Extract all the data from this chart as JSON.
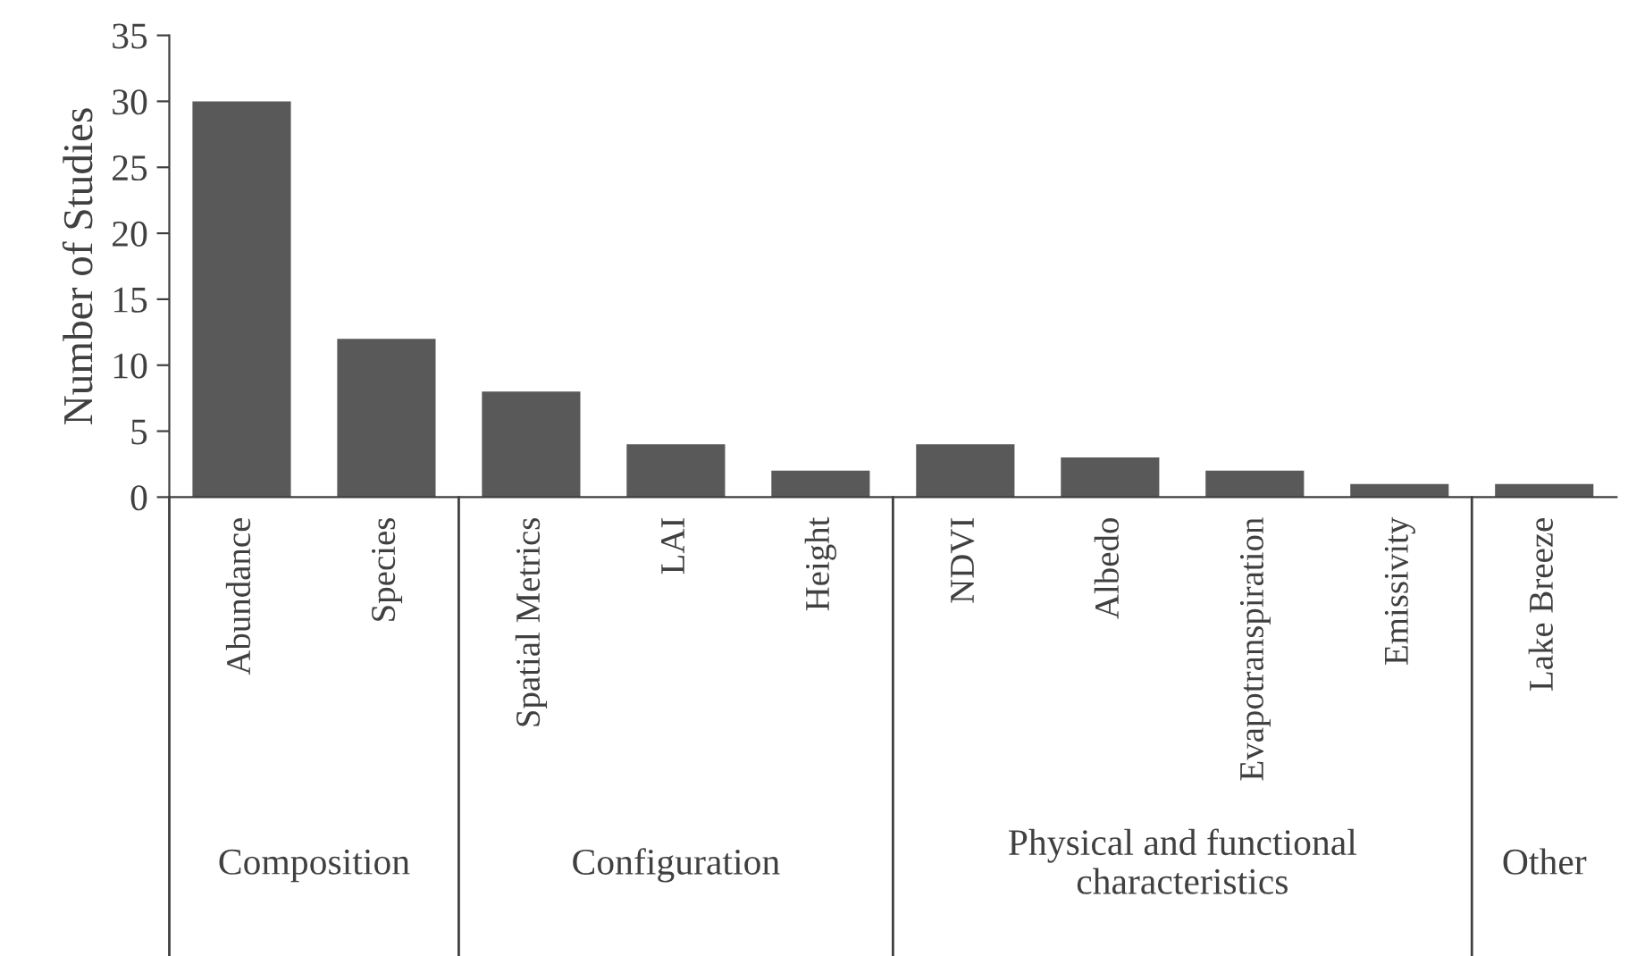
{
  "chart_data": {
    "type": "bar",
    "ylabel": "Number of Studies",
    "categories": [
      "Abundance",
      "Species",
      "Spatial Metrics",
      "LAI",
      "Height",
      "NDVI",
      "Albedo",
      "Evapotranspiration",
      "Emissivity",
      "Lake Breeze"
    ],
    "values": [
      30,
      12,
      8,
      4,
      2,
      4,
      3,
      2,
      1,
      1
    ],
    "color": "#595959",
    "ylim": [
      0,
      35
    ],
    "yticks": [
      0,
      5,
      10,
      15,
      20,
      25,
      30,
      35
    ],
    "grid": false,
    "annotations": [
      "Composition",
      "Configuration",
      "Physical and functional characteristics",
      "Other"
    ]
  }
}
